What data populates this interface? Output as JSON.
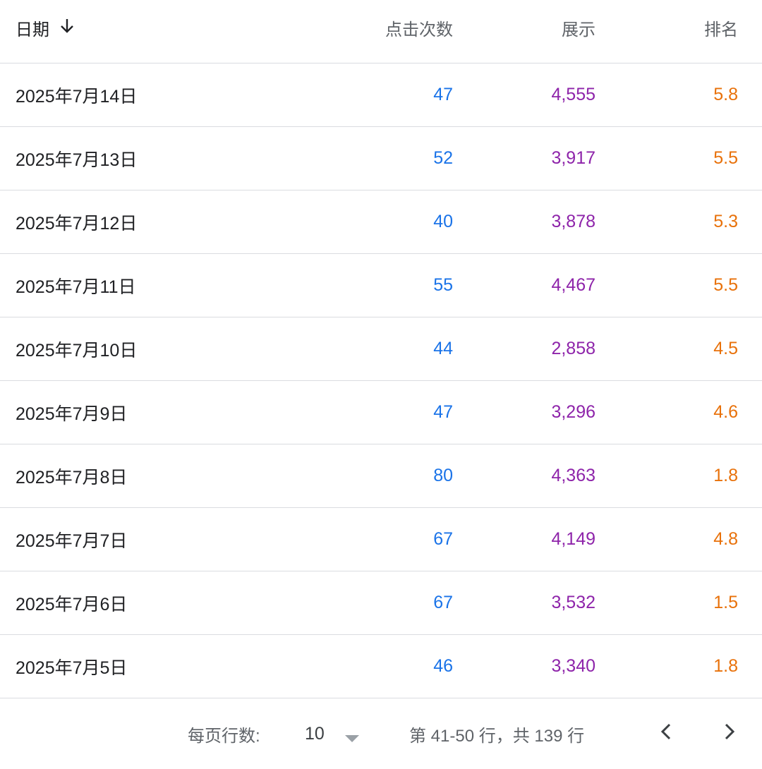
{
  "table": {
    "headers": {
      "date": "日期",
      "clicks": "点击次数",
      "impressions": "展示",
      "position": "排名"
    },
    "sort_icon": "arrow-down-icon",
    "rows": [
      {
        "date": "2025年7月14日",
        "clicks": "47",
        "impressions": "4,555",
        "position": "5.8"
      },
      {
        "date": "2025年7月13日",
        "clicks": "52",
        "impressions": "3,917",
        "position": "5.5"
      },
      {
        "date": "2025年7月12日",
        "clicks": "40",
        "impressions": "3,878",
        "position": "5.3"
      },
      {
        "date": "2025年7月11日",
        "clicks": "55",
        "impressions": "4,467",
        "position": "5.5"
      },
      {
        "date": "2025年7月10日",
        "clicks": "44",
        "impressions": "2,858",
        "position": "4.5"
      },
      {
        "date": "2025年7月9日",
        "clicks": "47",
        "impressions": "3,296",
        "position": "4.6"
      },
      {
        "date": "2025年7月8日",
        "clicks": "80",
        "impressions": "4,363",
        "position": "1.8"
      },
      {
        "date": "2025年7月7日",
        "clicks": "67",
        "impressions": "4,149",
        "position": "4.8"
      },
      {
        "date": "2025年7月6日",
        "clicks": "67",
        "impressions": "3,532",
        "position": "1.5"
      },
      {
        "date": "2025年7月5日",
        "clicks": "46",
        "impressions": "3,340",
        "position": "1.8"
      }
    ]
  },
  "colors": {
    "clicks": "#1a73e8",
    "impressions": "#8e24aa",
    "position": "#e8710a",
    "divider": "#dadce0"
  },
  "pagination": {
    "rows_per_page_label": "每页行数:",
    "rows_per_page_value": "10",
    "range_text": "第 41-50 行，共 139 行",
    "prev_icon": "chevron-left-icon",
    "next_icon": "chevron-right-icon",
    "dropdown_icon": "caret-down-icon"
  }
}
